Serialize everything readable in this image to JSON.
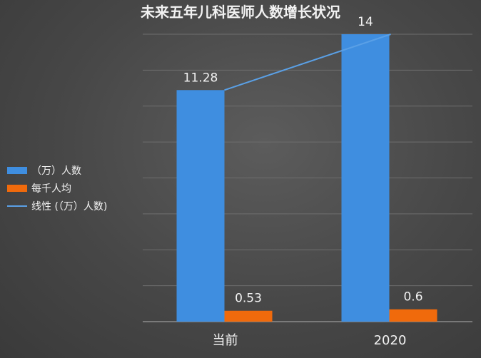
{
  "chart_data": {
    "type": "bar",
    "title": "未来五年儿科医师人数增长状况",
    "categories": [
      "当前",
      "2020"
    ],
    "ylim": [
      0,
      14
    ],
    "grid": true,
    "legend_position": "left",
    "series": [
      {
        "name": "（万）人数",
        "values": [
          11.28,
          14
        ],
        "color": "#3f8ee0",
        "value_labels": [
          "11.28",
          "14"
        ]
      },
      {
        "name": "每千人均",
        "values": [
          0.53,
          0.6
        ],
        "color": "#f06a0c",
        "value_labels": [
          "0.53",
          "0.6"
        ]
      }
    ],
    "trendline": {
      "name": "线性 (（万）人数)",
      "series": "（万）人数",
      "color": "#5aa0e6"
    }
  }
}
